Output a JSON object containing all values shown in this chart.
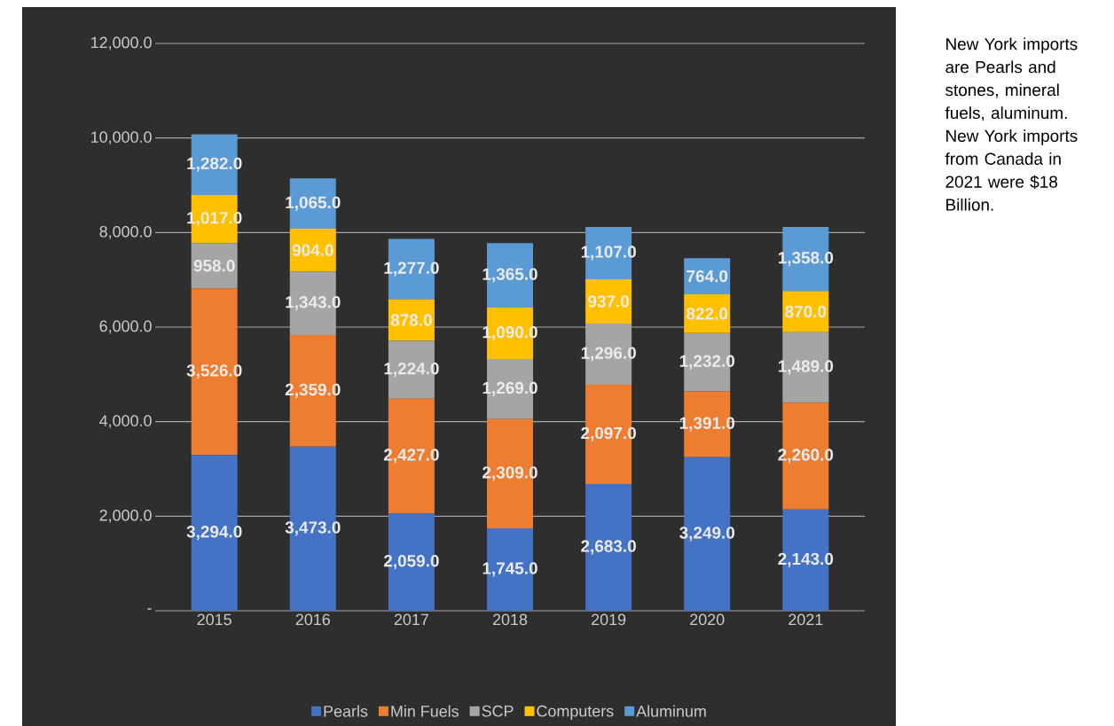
{
  "chart_data": {
    "type": "bar",
    "stacked": true,
    "categories": [
      "2015",
      "2016",
      "2017",
      "2018",
      "2019",
      "2020",
      "2021"
    ],
    "ylim": [
      0,
      12000
    ],
    "yticks": [
      {
        "value": 0,
        "label": "-"
      },
      {
        "value": 2000,
        "label": "2,000.0"
      },
      {
        "value": 4000,
        "label": "4,000.0"
      },
      {
        "value": 6000,
        "label": "6,000.0"
      },
      {
        "value": 8000,
        "label": "8,000.0"
      },
      {
        "value": 10000,
        "label": "10,000.0"
      },
      {
        "value": 12000,
        "label": "12,000.0"
      }
    ],
    "grid": "y",
    "legend": "bottom",
    "series": [
      {
        "name": "Pearls",
        "color": "#4472c4",
        "values": [
          3294,
          3473,
          2059,
          1745,
          2683,
          3249,
          2143
        ],
        "value_labels": [
          "3,294.0",
          "3,473.0",
          "2,059.0",
          "1,745.0",
          "2,683.0",
          "3,249.0",
          "2,143.0"
        ]
      },
      {
        "name": "Min Fuels",
        "color": "#ed7d31",
        "values": [
          3526,
          2359,
          2427,
          2309,
          2097,
          1391,
          2260
        ],
        "value_labels": [
          "3,526.0",
          "2,359.0",
          "2,427.0",
          "2,309.0",
          "2,097.0",
          "1,391.0",
          "2,260.0"
        ]
      },
      {
        "name": "SCP",
        "color": "#a5a5a5",
        "values": [
          958,
          1343,
          1224,
          1269,
          1296,
          1232,
          1489
        ],
        "value_labels": [
          "958.0",
          "1,343.0",
          "1,224.0",
          "1,269.0",
          "1,296.0",
          "1,232.0",
          "1,489.0"
        ]
      },
      {
        "name": "Computers",
        "color": "#ffc000",
        "values": [
          1017,
          904,
          878,
          1090,
          937,
          822,
          870
        ],
        "value_labels": [
          "1,017.0",
          "904.0",
          "878.0",
          "1,090.0",
          "937.0",
          "822.0",
          "870.0"
        ]
      },
      {
        "name": "Aluminum",
        "color": "#5b9bd5",
        "values": [
          1282,
          1065,
          1277,
          1365,
          1107,
          764,
          1358
        ],
        "value_labels": [
          "1,282.0",
          "1,065.0",
          "1,277.0",
          "1,365.0",
          "1,107.0",
          "764.0",
          "1,358.0"
        ]
      }
    ],
    "annotations": [
      "New York imports are Pearls and stones, mineral fuels, aluminum. New York imports from Canada in 2021 were $18 Billion."
    ]
  }
}
